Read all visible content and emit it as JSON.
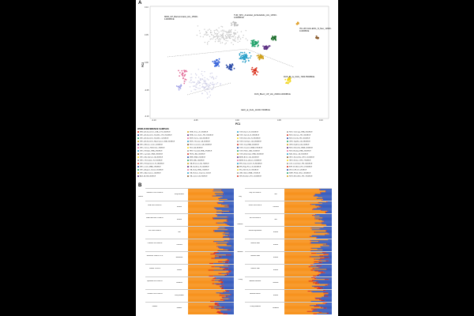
{
  "panel_a": {
    "letter": "A",
    "xlabel": "PC1",
    "ylabel": "PC2",
    "x_ticks": [
      "-0.10",
      "-0.05",
      "0.00",
      "0.05",
      "0.10"
    ],
    "y_ticks": [
      "0.10",
      "0.05",
      "0.00",
      "-0.05",
      "-0.10"
    ],
    "annotations": [
      {
        "text": "MDR_UP_Barranmiratsi_HG_15500-14000BCE"
      },
      {
        "text": "TUR_SPC_Anatolian_Ezbelietiktlo_HG_12500-12000BCE"
      },
      {
        "text": "ITA-UP-CHG-ENG_N_Neo_12900-11300BCE"
      },
      {
        "text": "RUS_Bl_Ia_CHG_7000-5500BCE"
      },
      {
        "text": "RUS_Bla-N_UP_HG_23000-10000BCE"
      },
      {
        "text": "GEO_al_CHG_11000-7000BCE"
      }
    ],
    "legend_title": "WORLD REFERENCE SAMPLES",
    "legend_columns": [
      [
        "MKD_Archaeomers_LBA_1275-1000BCE",
        "GRC_Archaeomer_Neolithic_HG_9000BCE",
        "GRC_Archaeomer_Neolithic_5200BCE",
        "GRC_Archaeomer_Mycenaean_LBA_1600BCE",
        "GRC_Minoan_Crete_2000BCE",
        "GRC_Tarsus_Hellenistic_300BCE",
        "GRC_Helladic_EBA_2800BCE",
        "GRC_Cycladic_EBA_2800BCE",
        "GRC_Macedonian_IA_800BCE",
        "GRC_Thessalian_N_5500BCE",
        "GRC_Peloponnese_N_5800BCE",
        "GRC_Crete_MBA_1900BCE",
        "GRC_Aegean_Island_2500BCE",
        "GRC_Mycenaean_1400BCE",
        "ALB_IA_800-300BCE"
      ],
      [
        "SRB_Vinca_N_5300BCE",
        "SRB_Iron_Gates_HG_9000BCE",
        "BGR_Varna_CA_4500BCE",
        "BGR_Thracian_IA_600BCE",
        "ROU_Cucuteni_CA_4000BCE",
        "ROU_IA_800BCE",
        "HRV_Vucedol_EBA_2900BCE",
        "HUN_LBA_1500BCE",
        "MNE_EBA_2500BCE",
        "BIH_LBA_1300BCE",
        "ITA_Etruscan_IA_700BCE",
        "ITA_Sardinia_N_5000BCE",
        "ITA_Sicily_EBA_2200BCE",
        "ITA_Roman_Imperial_100CE",
        "ITA_Latium_IA_900BCE"
      ],
      [
        "TUR_Barcin_N_6500BCE",
        "TUR_Tepecik_N_6800BCE",
        "TUR_Boncuklu_N_8300BCE",
        "TUR_Kumtepe_CA_4800BCE",
        "TUR_Troy_EBA_2600BCE",
        "TUR_Ovaoren_MBA_1900BCE",
        "TUR_Hittite_LBA_1500BCE",
        "TUR_Arslantepe_EBA_3000BCE",
        "ARM_Areni_CA_4000BCE",
        "ARM_Kura_Araxes_3000BCE",
        "IRN_Ganj_Dareh_N_8000BCE",
        "IRN_Hajji_Firuz_N_6000BCE",
        "IRQ_Nemrik_N_9000BCE",
        "LBN_Sidon_MBA_1700BCE",
        "ISR_Natufian_HG_12000BCE"
      ],
      [
        "RUS_Yamnaya_EBA_3000BCE",
        "RUS_Samara_HG_5600BCE",
        "RUS_Karelia_HG_6000BCE",
        "UKR_Trypillia_CA_3800BCE",
        "UKR_Scythian_IA_500BCE",
        "RUS_Sintashta_MBA_2000BCE",
        "RUS_Maikop_EBA_3500BCE",
        "KAZ_Botai_CA_3500BCE",
        "GEO_Satsurblia_CHG_11000BCE",
        "GEO_Kotias_CHG_7700BCE",
        "LUX_Loschbour_HG_6000BCE",
        "ESP_El_Miron_HG_17000BCE",
        "DEU_LBK_N_5200BCE",
        "SWE_Pitted_Ware_3000BCE",
        "NOR_Mesolithic_HG_7000BCE"
      ]
    ]
  },
  "panel_b": {
    "letter": "B",
    "left_groups": [
      {
        "label": "Neolithic 6700-5500BCE",
        "period": "Early Neolithic"
      },
      {
        "label": "EBA 3300-2000BCE",
        "period": "Bronze"
      },
      {
        "label": "MBA-LBA 2000-1200BCE",
        "period": "Bronze"
      },
      {
        "label": "Iron 1000-500BCE",
        "period": "Iron"
      },
      {
        "label": "Classical 500-300BCE",
        "period": "Classical"
      },
      {
        "label": "Hellenistic 300BCE-1CE",
        "period": "Hellenistic"
      },
      {
        "label": "Roman 1-400CE",
        "period": "Roman"
      },
      {
        "label": "Byzantine 400-1000CE",
        "period": "Medieval"
      },
      {
        "label": "Ottoman 1400-1900CE",
        "period": "Early Modern"
      },
      {
        "label": "Modern",
        "period": "Modern"
      }
    ],
    "left_region": "Greece",
    "right_groups": [
      {
        "label": "Italy 200-500BCE",
        "period": "Iron"
      },
      {
        "label": "Rome 500-300BCE",
        "period": "Classical"
      },
      {
        "label": "IA 1000-500BCE",
        "period": "Iron"
      },
      {
        "label": "Minoan Mycenaean",
        "period": "Bronze"
      },
      {
        "label": "Balkans EBA",
        "period": "Bronze"
      },
      {
        "label": "Balkans MBA",
        "period": "Bronze"
      },
      {
        "label": "Balkans LBA",
        "period": "Bronze"
      },
      {
        "label": "Anatolia Neolithic",
        "period": "Neolithic"
      },
      {
        "label": "Anatolia Bronze",
        "period": "Bronze"
      },
      {
        "label": "Turkey Medieval",
        "period": "Medieval"
      }
    ],
    "right_regions": [
      "Italy",
      "Balkans",
      "Anatolia",
      "Turkey"
    ],
    "colors": {
      "orange": "#f7931e",
      "blue": "#3b5fbf",
      "red": "#d9301c",
      "green": "#2e8b3a"
    }
  }
}
